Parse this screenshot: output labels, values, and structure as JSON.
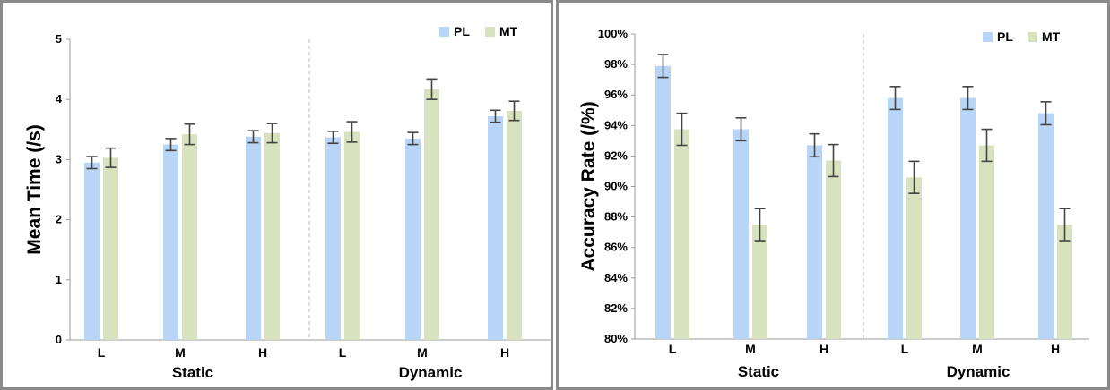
{
  "colors": {
    "PL": "#b8d5f7",
    "MT": "#d9e2bf",
    "error": "#444444",
    "axis": "#999999"
  },
  "chart_data": [
    {
      "type": "bar",
      "ylabel": "Mean Time (/s)",
      "ylim": [
        0,
        5
      ],
      "yticks": [
        0,
        1,
        2,
        3,
        4,
        5
      ],
      "ytick_labels": [
        "0",
        "1",
        "2",
        "3",
        "4",
        "5"
      ],
      "groups": [
        "Static",
        "Dynamic"
      ],
      "categories": [
        "L",
        "M",
        "H",
        "L",
        "M",
        "H"
      ],
      "series": [
        {
          "name": "PL",
          "values": [
            2.95,
            3.25,
            3.38,
            3.37,
            3.35,
            3.72
          ],
          "errors": [
            0.1,
            0.1,
            0.1,
            0.1,
            0.1,
            0.1
          ]
        },
        {
          "name": "MT",
          "values": [
            3.03,
            3.42,
            3.44,
            3.46,
            4.17,
            3.81
          ],
          "errors": [
            0.16,
            0.17,
            0.16,
            0.17,
            0.17,
            0.16
          ]
        }
      ],
      "legend": "top-right",
      "divider_between_groups": true
    },
    {
      "type": "bar",
      "ylabel": "Accuracy Rate (/%)",
      "ylim": [
        80,
        100
      ],
      "yticks": [
        80,
        82,
        84,
        86,
        88,
        90,
        92,
        94,
        96,
        98,
        100
      ],
      "ytick_labels": [
        "80%",
        "82%",
        "84%",
        "86%",
        "88%",
        "90%",
        "92%",
        "94%",
        "96%",
        "98%",
        "100%"
      ],
      "groups": [
        "Static",
        "Dynamic"
      ],
      "categories": [
        "L",
        "M",
        "H",
        "L",
        "M",
        "H"
      ],
      "series": [
        {
          "name": "PL",
          "values": [
            97.9,
            93.75,
            92.7,
            95.8,
            95.8,
            94.8
          ],
          "errors": [
            0.75,
            0.75,
            0.75,
            0.75,
            0.75,
            0.75
          ]
        },
        {
          "name": "MT",
          "values": [
            93.75,
            87.5,
            91.7,
            90.6,
            92.7,
            87.5
          ],
          "errors": [
            1.05,
            1.05,
            1.05,
            1.05,
            1.05,
            1.05
          ]
        }
      ],
      "legend": "top-right",
      "divider_between_groups": true
    }
  ]
}
